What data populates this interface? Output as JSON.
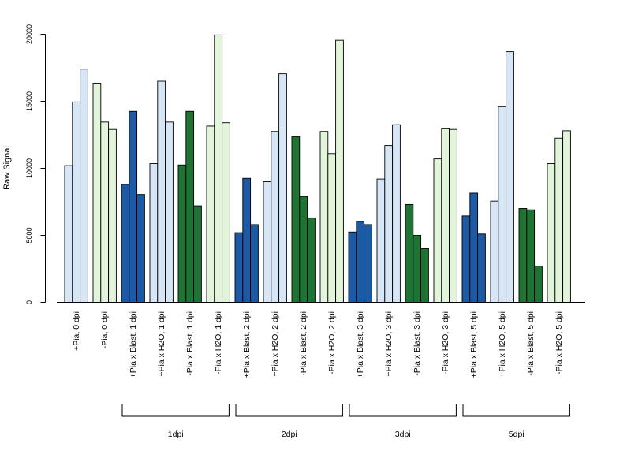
{
  "chart_data": {
    "type": "bar",
    "title": "",
    "xlabel": "",
    "ylabel": "Raw Signal",
    "ylim": [
      0,
      20000
    ],
    "yticks": [
      0,
      5000,
      10000,
      15000,
      20000
    ],
    "grid": false,
    "bars_per_group": 3,
    "colors": {
      "light_blue": "#d6e6f6",
      "light_green": "#e2f5da",
      "dark_blue": "#1c5aa6",
      "dark_green": "#1f7434",
      "outline": "#000000"
    },
    "categories": [
      {
        "label": "+Pia, 0 dpi",
        "color": "light_blue",
        "values": [
          10200,
          14950,
          17400
        ]
      },
      {
        "label": "-Pia, 0 dpi",
        "color": "light_green",
        "values": [
          16350,
          13450,
          12900
        ]
      },
      {
        "label": "+Pia x Blast, 1 dpi",
        "color": "dark_blue",
        "values": [
          8800,
          14250,
          8050
        ]
      },
      {
        "label": "+Pia x H2O, 1 dpi",
        "color": "light_blue",
        "values": [
          10350,
          16500,
          13450
        ]
      },
      {
        "label": "-Pia x Blast, 1 dpi",
        "color": "dark_green",
        "values": [
          10250,
          14250,
          7200
        ]
      },
      {
        "label": "-Pia x H2O, 1 dpi",
        "color": "light_green",
        "values": [
          13150,
          19950,
          13400
        ]
      },
      {
        "label": "+Pia x Blast, 2 dpi",
        "color": "dark_blue",
        "values": [
          5200,
          9250,
          5800
        ]
      },
      {
        "label": "+Pia x H2O, 2 dpi",
        "color": "light_blue",
        "values": [
          9000,
          12750,
          17050
        ]
      },
      {
        "label": "-Pia x Blast, 2 dpi",
        "color": "dark_green",
        "values": [
          12350,
          7900,
          6300
        ]
      },
      {
        "label": "-Pia x H2O, 2 dpi",
        "color": "light_green",
        "values": [
          12750,
          11100,
          19550
        ]
      },
      {
        "label": "+Pia x Blast, 3 dpi",
        "color": "dark_blue",
        "values": [
          5250,
          6050,
          5800
        ]
      },
      {
        "label": "+Pia x H2O, 3 dpi",
        "color": "light_blue",
        "values": [
          9200,
          11700,
          13250
        ]
      },
      {
        "label": "-Pia x Blast, 3 dpi",
        "color": "dark_green",
        "values": [
          7300,
          5000,
          4000
        ]
      },
      {
        "label": "-Pia x H2O, 3 dpi",
        "color": "light_green",
        "values": [
          10700,
          12950,
          12900
        ]
      },
      {
        "label": "+Pia x Blast, 5 dpi",
        "color": "dark_blue",
        "values": [
          6450,
          8150,
          5100
        ]
      },
      {
        "label": "+Pia x H2O, 5 dpi",
        "color": "light_blue",
        "values": [
          7550,
          14600,
          18700
        ]
      },
      {
        "label": "-Pia x Blast, 5 dpi",
        "color": "dark_green",
        "values": [
          7000,
          6900,
          2700
        ]
      },
      {
        "label": "-Pia x H2O, 5 dpi",
        "color": "light_green",
        "values": [
          10350,
          12250,
          12800
        ]
      }
    ],
    "group_brackets": [
      {
        "label": "1dpi",
        "from_category": 2,
        "to_category": 5
      },
      {
        "label": "2dpi",
        "from_category": 6,
        "to_category": 9
      },
      {
        "label": "3dpi",
        "from_category": 10,
        "to_category": 13
      },
      {
        "label": "5dpi",
        "from_category": 14,
        "to_category": 17
      }
    ]
  }
}
